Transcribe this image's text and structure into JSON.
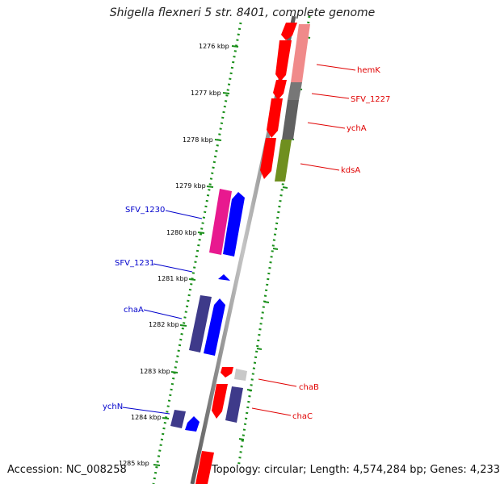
{
  "title": "Shigella flexneri 5 str. 8401, complete genome",
  "footer": {
    "accession": "Accession: NC_008258",
    "topology": "Topology: circular; Length: 4,574,284 bp; Genes: 4,233"
  },
  "ticks": [
    "1276 kbp",
    "1277 kbp",
    "1278 kbp",
    "1279 kbp",
    "1280 kbp",
    "1281 kbp",
    "1282 kbp",
    "1283 kbp",
    "1284 kbp",
    "1285 kbp"
  ],
  "labels": {
    "hemK": "hemK",
    "sfv1227": "SFV_1227",
    "ychA": "ychA",
    "kdsA": "kdsA",
    "sfv1230": "SFV_1230",
    "sfv1231": "SFV_1231",
    "chaA": "chaA",
    "chaB": "chaB",
    "chaC": "chaC",
    "ychN": "ychN"
  },
  "colors": {
    "forward_cds": "#ff0000",
    "reverse_cds": "#0000ff",
    "hemK_track": "#f08a8a",
    "ychA_track": "#606060",
    "kdsA_track": "#6f8f1f",
    "sfv1230_track": "#e8198f",
    "reverse_track": "#3e3a8a",
    "chaB_track": "#c8c8c8",
    "backbone": "#8a8a8a",
    "ruler": "#1a8f1a"
  }
}
